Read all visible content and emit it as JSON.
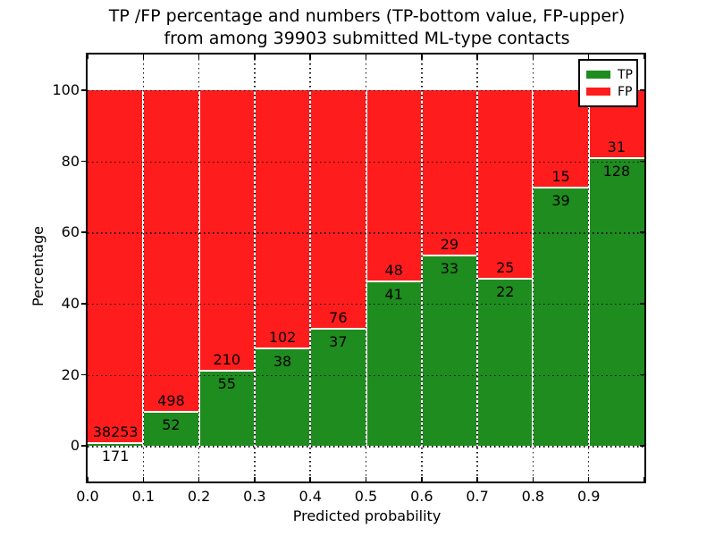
{
  "figure": {
    "title_line1": "TP /FP percentage and numbers (TP-bottom value, FP-upper)",
    "title_line2": "from among 39903 submitted ML-type contacts"
  },
  "chart_data": {
    "type": "bar",
    "subtype": "stacked-percentage-histogram",
    "title": "TP /FP percentage and numbers (TP-bottom value, FP-upper)\nfrom among 39903 submitted ML-type contacts",
    "total_contacts": 39903,
    "xlabel": "Predicted probability",
    "ylabel": "Percentage",
    "xlim": [
      0.0,
      1.0
    ],
    "ylim": [
      -10,
      110
    ],
    "xticks": [
      "0.0",
      "0.1",
      "0.2",
      "0.3",
      "0.4",
      "0.5",
      "0.6",
      "0.7",
      "0.8",
      "0.9"
    ],
    "yticks": [
      "0",
      "20",
      "40",
      "60",
      "80",
      "100"
    ],
    "ytick_values": [
      0,
      20,
      40,
      60,
      80,
      100
    ],
    "grid": "dotted",
    "legend": {
      "position": "upper right",
      "entries": [
        {
          "label": "TP",
          "color": "#1e8c1e"
        },
        {
          "label": "FP",
          "color": "#ff1c1c"
        }
      ]
    },
    "colors": {
      "tp": "#1e8c1e",
      "fp": "#ff1c1c",
      "bar_edge": "#ffffff"
    },
    "bins": [
      {
        "range": [
          0.0,
          0.1
        ],
        "tp": 171,
        "fp": 38253,
        "tp_percent": 0.45,
        "fp_percent": 99.55
      },
      {
        "range": [
          0.1,
          0.2
        ],
        "tp": 52,
        "fp": 498,
        "tp_percent": 9.45,
        "fp_percent": 90.55
      },
      {
        "range": [
          0.2,
          0.3
        ],
        "tp": 55,
        "fp": 210,
        "tp_percent": 20.75,
        "fp_percent": 79.25
      },
      {
        "range": [
          0.3,
          0.4
        ],
        "tp": 38,
        "fp": 102,
        "tp_percent": 27.14,
        "fp_percent": 72.86
      },
      {
        "range": [
          0.4,
          0.5
        ],
        "tp": 37,
        "fp": 76,
        "tp_percent": 32.74,
        "fp_percent": 67.26
      },
      {
        "range": [
          0.5,
          0.6
        ],
        "tp": 41,
        "fp": 48,
        "tp_percent": 46.07,
        "fp_percent": 53.93
      },
      {
        "range": [
          0.6,
          0.7
        ],
        "tp": 33,
        "fp": 29,
        "tp_percent": 53.23,
        "fp_percent": 46.77
      },
      {
        "range": [
          0.7,
          0.8
        ],
        "tp": 22,
        "fp": 25,
        "tp_percent": 46.81,
        "fp_percent": 53.19
      },
      {
        "range": [
          0.8,
          0.9
        ],
        "tp": 39,
        "fp": 15,
        "tp_percent": 72.22,
        "fp_percent": 27.78
      },
      {
        "range": [
          0.9,
          1.0
        ],
        "tp": 128,
        "fp": 31,
        "tp_percent": 80.5,
        "fp_percent": 19.5
      }
    ]
  }
}
